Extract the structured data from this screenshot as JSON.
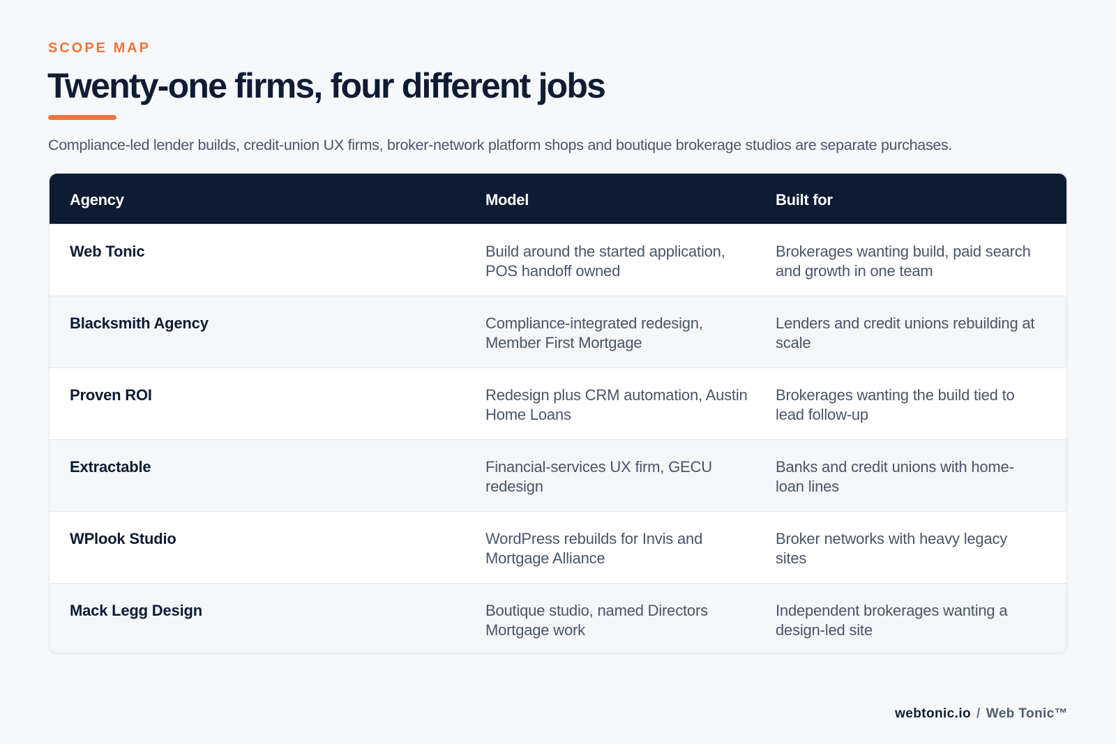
{
  "header": {
    "eyebrow": "SCOPE MAP",
    "title": "Twenty-one firms, four different jobs",
    "subtitle": "Compliance-led lender builds, credit-union UX firms, broker-network platform shops and boutique brokerage studios are separate purchases."
  },
  "table": {
    "columns": [
      "Agency",
      "Model",
      "Built for"
    ],
    "rows": [
      {
        "agency": "Web Tonic",
        "model": "Build around the started application, POS handoff owned",
        "built_for": "Brokerages wanting build, paid search and growth in one team"
      },
      {
        "agency": "Blacksmith Agency",
        "model": "Compliance-integrated redesign, Member First Mortgage",
        "built_for": "Lenders and credit unions rebuilding at scale"
      },
      {
        "agency": "Proven ROI",
        "model": "Redesign plus CRM automation, Austin Home Loans",
        "built_for": "Brokerages wanting the build tied to lead follow-up"
      },
      {
        "agency": "Extractable",
        "model": "Financial-services UX firm, GECU redesign",
        "built_for": "Banks and credit unions with home-loan lines"
      },
      {
        "agency": "WPlook Studio",
        "model": "WordPress rebuilds for Invis and Mortgage Alliance",
        "built_for": "Broker networks with heavy legacy sites"
      },
      {
        "agency": "Mack Legg Design",
        "model": "Boutique studio, named Directors Mortgage work",
        "built_for": "Independent brokerages wanting a design-led site"
      }
    ]
  },
  "footer": {
    "site": "webtonic.io",
    "separator": "/",
    "brand": "Web Tonic™"
  },
  "colors": {
    "accent": "#f0743a",
    "navy": "#0d1b33",
    "body_text": "#4a5568",
    "background": "#f6f8fb"
  }
}
